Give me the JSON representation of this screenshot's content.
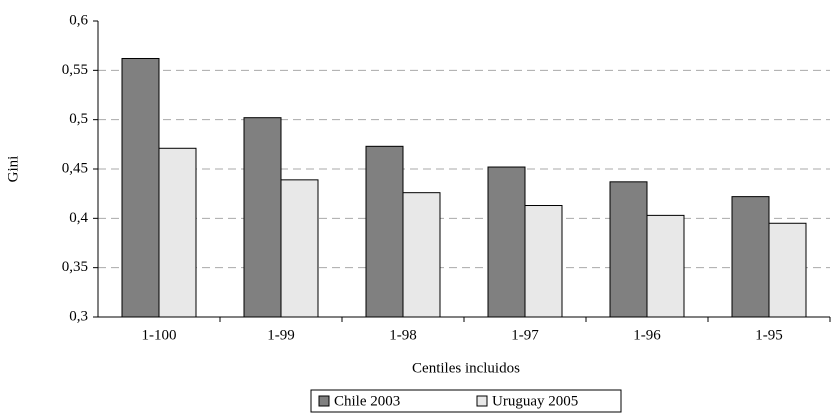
{
  "chart_data": {
    "type": "bar",
    "x_label": "Centiles incluidos",
    "y_label": "Gini",
    "categories": [
      "1-100",
      "1-99",
      "1-98",
      "1-97",
      "1-96",
      "1-95"
    ],
    "series": [
      {
        "name": "Chile 2003",
        "color": "#808080",
        "values": [
          0.562,
          0.502,
          0.473,
          0.452,
          0.437,
          0.422
        ]
      },
      {
        "name": "Uruguay 2005",
        "color": "#e8e8e8",
        "values": [
          0.471,
          0.439,
          0.426,
          0.413,
          0.403,
          0.395
        ]
      }
    ],
    "ylim": [
      0.3,
      0.6
    ],
    "yticks": [
      {
        "value": 0.3,
        "label": "0,3"
      },
      {
        "value": 0.35,
        "label": "0,35"
      },
      {
        "value": 0.4,
        "label": "0,4"
      },
      {
        "value": 0.45,
        "label": "0,45"
      },
      {
        "value": 0.5,
        "label": "0,5"
      },
      {
        "value": 0.55,
        "label": "0,55"
      },
      {
        "value": 0.6,
        "label": "0,6"
      }
    ],
    "grid": true,
    "legend": "bottom"
  }
}
